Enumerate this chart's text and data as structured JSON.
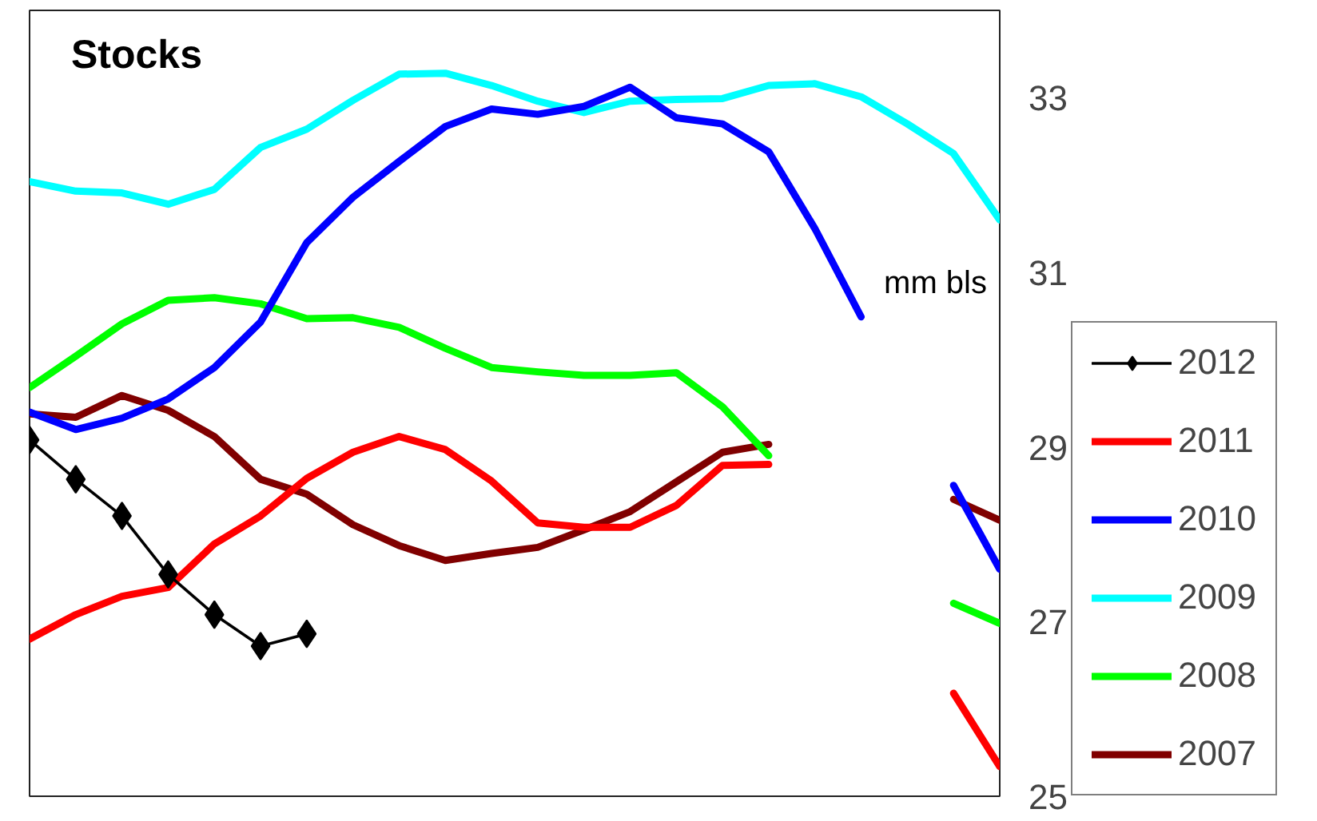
{
  "chart_data": {
    "type": "line",
    "title": "Stocks",
    "ylabel": "mm bls",
    "categories": [
      null,
      null,
      null,
      null,
      null,
      null,
      null,
      null,
      null,
      null,
      null,
      null,
      null,
      null,
      null,
      null,
      null,
      null,
      null,
      null,
      null,
      null
    ],
    "ylim": [
      25,
      34
    ],
    "yticks": [
      25,
      27,
      29,
      31,
      33
    ],
    "grid": false,
    "legend": "bottom right",
    "marker": "none",
    "line_style": "solid",
    "series": [
      {
        "name": "2012",
        "color": "#000000",
        "marker": "diamond",
        "values": [
          29.08,
          28.63,
          28.21,
          27.54,
          27.08,
          26.72,
          26.86,
          null,
          null,
          null,
          null,
          null,
          null,
          null,
          null,
          null,
          null,
          null,
          null,
          null,
          null,
          null
        ]
      },
      {
        "name": "2011",
        "color": "#ff0000",
        "values": [
          26.8,
          27.08,
          27.29,
          27.39,
          27.89,
          28.21,
          28.64,
          28.94,
          29.12,
          28.97,
          28.61,
          28.13,
          28.08,
          28.08,
          28.33,
          28.79,
          28.8,
          null,
          null,
          null,
          26.18,
          25.34
        ]
      },
      {
        "name": "2010",
        "color": "#0000ff",
        "values": [
          29.4,
          29.2,
          29.33,
          29.55,
          29.91,
          30.43,
          31.34,
          31.86,
          32.27,
          32.67,
          32.87,
          32.81,
          32.9,
          33.12,
          32.77,
          32.7,
          32.38,
          31.5,
          30.49,
          null,
          28.56,
          27.6
        ]
      },
      {
        "name": "2009",
        "color": "#00ffff",
        "values": [
          32.04,
          31.93,
          31.91,
          31.78,
          31.95,
          32.43,
          32.64,
          32.97,
          33.27,
          33.28,
          33.14,
          32.96,
          32.83,
          32.96,
          32.98,
          32.99,
          33.14,
          33.16,
          33.01,
          32.7,
          32.36,
          31.6
        ]
      },
      {
        "name": "2008",
        "color": "#00ff00",
        "values": [
          29.68,
          30.04,
          30.41,
          30.68,
          30.71,
          30.64,
          30.47,
          30.48,
          30.37,
          30.13,
          29.91,
          29.86,
          29.82,
          29.82,
          29.85,
          29.46,
          28.9,
          null,
          null,
          null,
          27.21,
          26.98
        ]
      },
      {
        "name": "2007",
        "color": "#800000",
        "values": [
          29.38,
          29.34,
          29.59,
          29.42,
          29.12,
          28.63,
          28.46,
          28.11,
          27.87,
          27.7,
          27.78,
          27.85,
          28.05,
          28.26,
          28.6,
          28.94,
          29.03,
          null,
          null,
          null,
          28.4,
          28.16
        ]
      }
    ]
  }
}
